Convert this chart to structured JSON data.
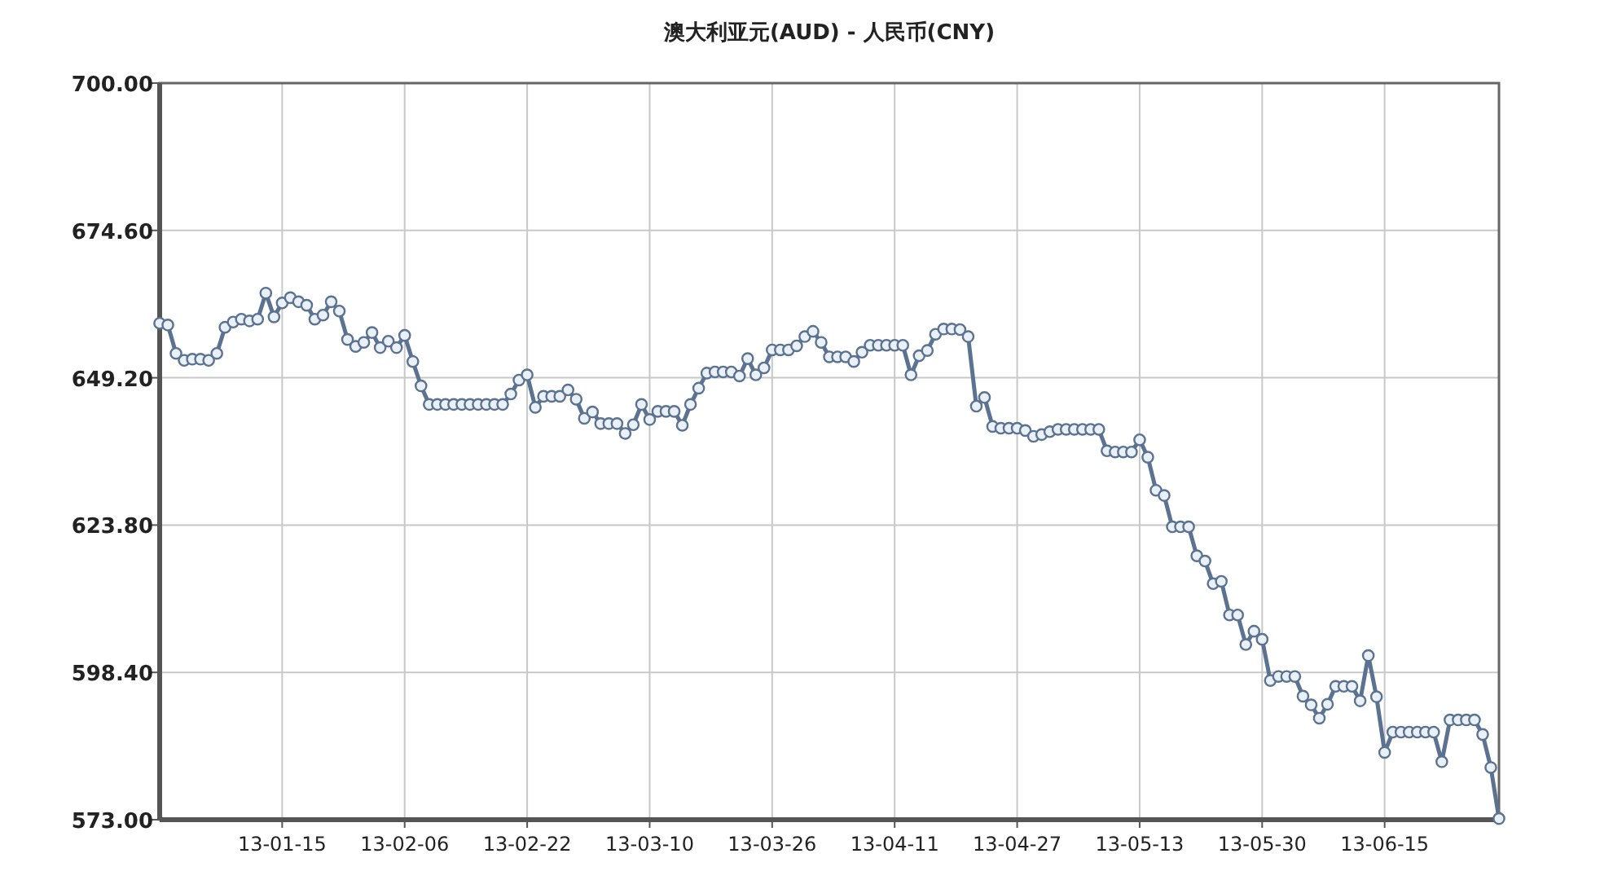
{
  "chart_data": {
    "type": "line",
    "title": "澳大利亚元(AUD) - 人民币(CNY)",
    "categories": [
      null,
      null,
      null,
      null,
      null,
      null,
      null,
      null,
      null,
      null,
      null,
      null,
      null,
      null,
      null,
      "13-01-15",
      null,
      null,
      null,
      null,
      null,
      null,
      null,
      null,
      null,
      null,
      null,
      null,
      null,
      null,
      "13-02-06",
      null,
      null,
      null,
      null,
      null,
      null,
      null,
      null,
      null,
      null,
      null,
      null,
      null,
      null,
      "13-02-22",
      null,
      null,
      null,
      null,
      null,
      null,
      null,
      null,
      null,
      null,
      null,
      null,
      null,
      null,
      "13-03-10",
      null,
      null,
      null,
      null,
      null,
      null,
      null,
      null,
      null,
      null,
      null,
      null,
      null,
      null,
      "13-03-26",
      null,
      null,
      null,
      null,
      null,
      null,
      null,
      null,
      null,
      null,
      null,
      null,
      null,
      null,
      "13-04-11",
      null,
      null,
      null,
      null,
      null,
      null,
      null,
      null,
      null,
      null,
      null,
      null,
      null,
      null,
      "13-04-27",
      null,
      null,
      null,
      null,
      null,
      null,
      null,
      null,
      null,
      null,
      null,
      null,
      null,
      null,
      "13-05-13",
      null,
      null,
      null,
      null,
      null,
      null,
      null,
      null,
      null,
      null,
      null,
      null,
      null,
      null,
      "13-05-30",
      null,
      null,
      null,
      null,
      null,
      null,
      null,
      null,
      null,
      null,
      null,
      null,
      null,
      null,
      "13-06-15",
      null,
      null,
      null,
      null,
      null,
      null,
      null,
      null,
      null,
      null,
      null,
      null,
      null,
      null
    ],
    "values": [
      658.6,
      658.3,
      653.4,
      652.2,
      652.4,
      652.4,
      652.2,
      653.4,
      657.9,
      658.8,
      659.3,
      659.0,
      659.3,
      663.8,
      659.7,
      662.1,
      663.0,
      662.3,
      661.7,
      659.3,
      660.0,
      662.3,
      660.7,
      655.8,
      654.6,
      655.3,
      657.0,
      654.4,
      655.5,
      654.4,
      656.5,
      652.0,
      647.8,
      644.6,
      644.6,
      644.6,
      644.6,
      644.6,
      644.6,
      644.6,
      644.6,
      644.6,
      644.6,
      646.4,
      648.8,
      649.7,
      644.1,
      646.0,
      646.0,
      646.0,
      647.1,
      645.5,
      642.2,
      643.3,
      641.3,
      641.3,
      641.3,
      639.6,
      641.1,
      644.6,
      642.0,
      643.4,
      643.4,
      643.4,
      641.0,
      644.6,
      647.4,
      650.0,
      650.2,
      650.2,
      650.2,
      649.5,
      652.5,
      649.7,
      650.9,
      654.0,
      654.0,
      654.0,
      654.7,
      656.3,
      657.2,
      655.3,
      652.8,
      652.8,
      652.8,
      652.0,
      653.6,
      654.8,
      654.8,
      654.8,
      654.8,
      654.8,
      649.7,
      653.0,
      653.9,
      656.7,
      657.6,
      657.6,
      657.5,
      656.3,
      644.3,
      645.8,
      640.8,
      640.5,
      640.5,
      640.5,
      640.1,
      639.1,
      639.4,
      639.9,
      640.3,
      640.3,
      640.3,
      640.3,
      640.3,
      640.3,
      636.6,
      636.4,
      636.4,
      636.4,
      638.5,
      635.5,
      629.8,
      628.9,
      623.5,
      623.5,
      623.5,
      618.5,
      617.6,
      613.7,
      614.1,
      608.3,
      608.3,
      603.2,
      605.5,
      604.1,
      597.0,
      597.7,
      597.7,
      597.7,
      594.3,
      592.8,
      590.5,
      592.9,
      596.0,
      596.0,
      596.0,
      593.5,
      601.3,
      594.2,
      584.6,
      588.1,
      588.1,
      588.1,
      588.1,
      588.1,
      588.1,
      583.0,
      590.2,
      590.2,
      590.2,
      590.2,
      587.7,
      582.0,
      573.2
    ],
    "color": "#5b7291",
    "ylim": [
      573,
      700
    ],
    "yticks": [
      {
        "value": 573,
        "label": "573.00"
      },
      {
        "value": 598.4,
        "label": "598.40"
      },
      {
        "value": 623.8,
        "label": "623.80"
      },
      {
        "value": 649.2,
        "label": "649.20"
      },
      {
        "value": 674.6,
        "label": "674.60"
      },
      {
        "value": 700,
        "label": "700.00"
      }
    ],
    "grid": true,
    "marker": "circle"
  }
}
